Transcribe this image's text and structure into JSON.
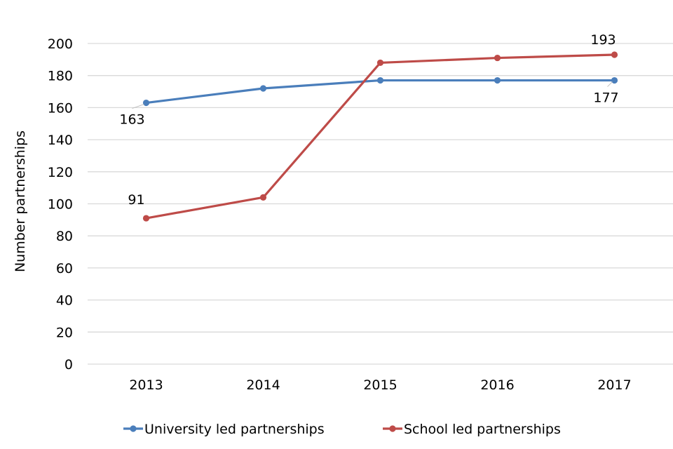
{
  "chart_data": {
    "type": "line",
    "x": [
      "2013",
      "2014",
      "2015",
      "2016",
      "2017"
    ],
    "series": [
      {
        "name": "University led partnerships",
        "color": "#4A7EBB",
        "values": [
          163,
          172,
          177,
          177,
          177
        ]
      },
      {
        "name": "School led partnerships",
        "color": "#BE4B48",
        "values": [
          91,
          104,
          188,
          191,
          193
        ]
      }
    ],
    "yticks": [
      "0",
      "20",
      "40",
      "60",
      "80",
      "100",
      "120",
      "140",
      "160",
      "180",
      "200"
    ],
    "ylabel": "Number partnerships",
    "ylim": [
      0,
      200
    ],
    "grid": true,
    "legend": "bottom",
    "data_labels": [
      {
        "series": 0,
        "index": 0,
        "text": "163"
      },
      {
        "series": 0,
        "index": 4,
        "text": "177"
      },
      {
        "series": 1,
        "index": 0,
        "text": "91"
      },
      {
        "series": 1,
        "index": 4,
        "text": "193"
      }
    ]
  }
}
